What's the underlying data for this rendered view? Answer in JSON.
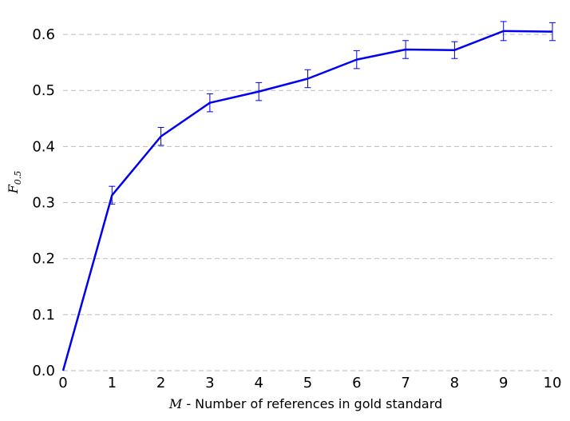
{
  "chart_data": {
    "type": "line",
    "title": "",
    "xlabel": {
      "symbol": "M",
      "text": " - Number of references in gold standard"
    },
    "ylabel": {
      "symbol": "F",
      "subscript": "0.5"
    },
    "x": [
      0,
      1,
      2,
      3,
      4,
      5,
      6,
      7,
      8,
      9,
      10
    ],
    "series": [
      {
        "values": [
          0.0,
          0.313,
          0.418,
          0.478,
          0.498,
          0.521,
          0.555,
          0.573,
          0.572,
          0.606,
          0.605
        ],
        "errors": [
          0.0,
          0.016,
          0.016,
          0.016,
          0.016,
          0.016,
          0.016,
          0.016,
          0.015,
          0.017,
          0.016
        ],
        "color": "#0000ee"
      }
    ],
    "xlim": [
      0,
      10
    ],
    "ylim": [
      0.0,
      0.65
    ],
    "xticks": [
      "0",
      "1",
      "2",
      "3",
      "4",
      "5",
      "6",
      "7",
      "8",
      "9",
      "10"
    ],
    "yticks": [
      "0.0",
      "0.1",
      "0.2",
      "0.3",
      "0.4",
      "0.5",
      "0.6"
    ],
    "grid": "horizontal-dashed",
    "legend": "none"
  }
}
